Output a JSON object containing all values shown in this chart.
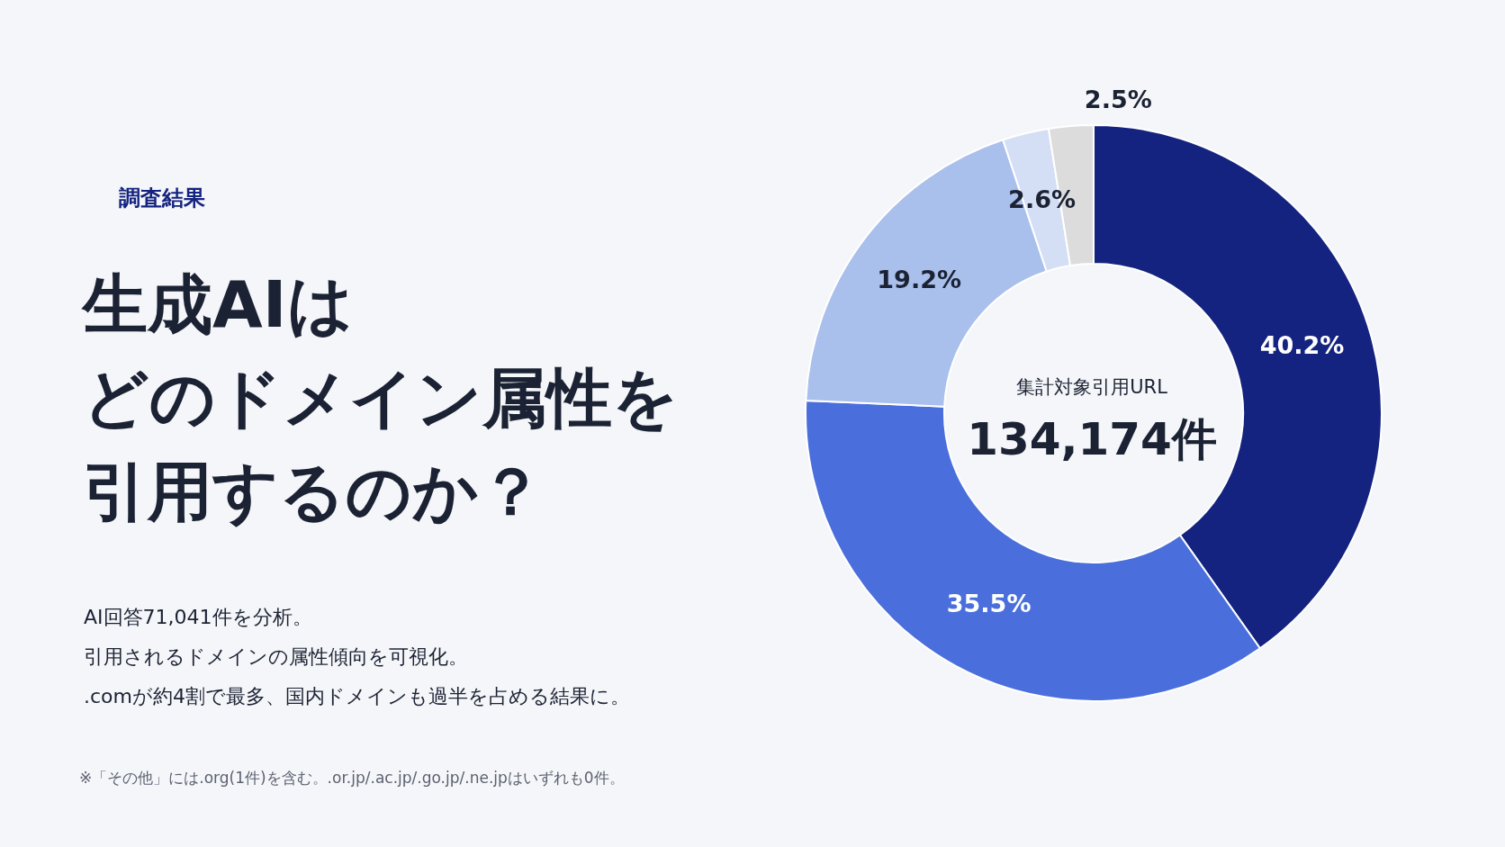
{
  "chart_data": {
    "type": "donut",
    "title": "生成AIはどのドメイン属性を引用するのか？",
    "subtitle": "AI回答71,041件を分析。引用されるドメインの属性傾向を可視化。.comが約4割で最多、国内ドメインも過半を占める結果に。",
    "categories": [
      null,
      null,
      null,
      null,
      null
    ],
    "values": [
      40.2,
      35.5,
      19.2,
      2.6,
      2.5
    ],
    "colors": [
      "#14237f",
      "#4a6fdc",
      "#a9bfec",
      "#d4dff6",
      "#dcdcdc"
    ],
    "value_labels": [
      "40.2%",
      "35.5%",
      "19.2%",
      "2.6%",
      "2.5%"
    ],
    "annotations": [
      "調査結果",
      "集計対象引用URL",
      "134,174件",
      "※「その他」には.org(1件)を含む。.or.jp/.ac.jp/.go.jp/.ne.jpはいずれも0件。"
    ]
  }
}
